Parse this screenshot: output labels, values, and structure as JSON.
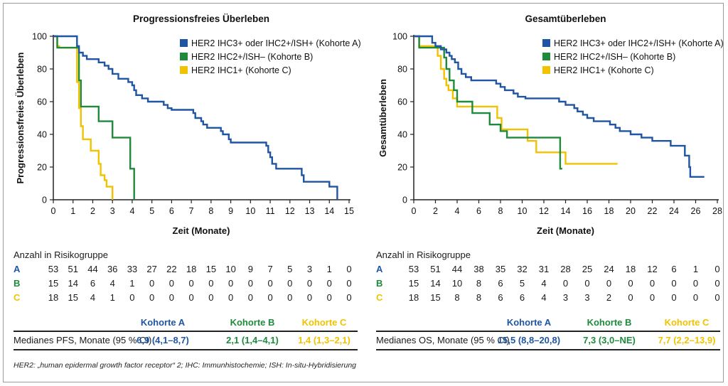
{
  "colors": {
    "A": "#1f55a3",
    "B": "#1e8a3c",
    "C": "#f2c200",
    "axis": "#222222"
  },
  "risk_header": "Anzahl in Risikogruppe",
  "cohort_letters": [
    "A",
    "B",
    "C"
  ],
  "median_headers": [
    "Kohorte A",
    "Kohorte B",
    "Kohorte C"
  ],
  "footnote": "HER2: „human epidermal growth factor receptor“ 2; IHC: Immunhistochemie; ISH: In-situ-Hybridisierung",
  "chart_data": [
    {
      "type": "line",
      "step": true,
      "title": "Progressionsfreies Überleben",
      "xlabel": "Zeit (Monate)",
      "ylabel": "Progressionsfreies Überleben",
      "xlim": [
        0,
        15
      ],
      "ylim": [
        0,
        100
      ],
      "xticks": [
        "0",
        "1",
        "2",
        "3",
        "4",
        "5",
        "6",
        "7",
        "8",
        "9",
        "10",
        "11",
        "12",
        "13",
        "14",
        "15"
      ],
      "yticks": [
        "0",
        "20",
        "40",
        "60",
        "80",
        "100"
      ],
      "legend_position": "top-right",
      "series": [
        {
          "name": "HER2 IHC3+ oder IHC2+/ISH+ (Kohorte A)",
          "color": "#1f55a3",
          "points": [
            [
              0,
              100
            ],
            [
              0.8,
              100
            ],
            [
              1.2,
              94
            ],
            [
              1.3,
              90
            ],
            [
              1.5,
              88
            ],
            [
              1.7,
              86
            ],
            [
              2.3,
              84
            ],
            [
              2.6,
              82
            ],
            [
              2.8,
              80
            ],
            [
              3.0,
              77
            ],
            [
              3.3,
              74
            ],
            [
              3.8,
              72
            ],
            [
              4.0,
              70
            ],
            [
              4.1,
              67
            ],
            [
              4.2,
              64
            ],
            [
              4.5,
              62
            ],
            [
              4.8,
              60
            ],
            [
              5.6,
              58
            ],
            [
              5.8,
              56
            ],
            [
              6.0,
              55
            ],
            [
              7.1,
              53
            ],
            [
              7.2,
              50
            ],
            [
              7.5,
              48
            ],
            [
              7.6,
              46
            ],
            [
              7.8,
              44
            ],
            [
              8.5,
              42
            ],
            [
              8.6,
              40
            ],
            [
              8.9,
              37
            ],
            [
              9.0,
              35
            ],
            [
              10.8,
              33
            ],
            [
              10.9,
              29
            ],
            [
              11.0,
              26
            ],
            [
              11.1,
              22
            ],
            [
              11.3,
              19
            ],
            [
              12.6,
              15
            ],
            [
              12.7,
              11
            ],
            [
              14.0,
              8
            ],
            [
              14.4,
              5
            ],
            [
              14.4,
              0
            ]
          ]
        },
        {
          "name": "HER2 IHC2+/ISH– (Kohorte B)",
          "color": "#1e8a3c",
          "points": [
            [
              0,
              100
            ],
            [
              0.2,
              93
            ],
            [
              1.2,
              93
            ],
            [
              1.3,
              73
            ],
            [
              1.4,
              57
            ],
            [
              2.2,
              57
            ],
            [
              2.3,
              48
            ],
            [
              2.9,
              48
            ],
            [
              3.0,
              38
            ],
            [
              3.8,
              38
            ],
            [
              3.9,
              19
            ],
            [
              4.1,
              19
            ],
            [
              4.1,
              0
            ]
          ]
        },
        {
          "name": "HER2 IHC1+ (Kohorte C)",
          "color": "#f2c200",
          "points": [
            [
              0,
              100
            ],
            [
              0.2,
              94
            ],
            [
              0.3,
              93
            ],
            [
              1.1,
              93
            ],
            [
              1.2,
              72
            ],
            [
              1.3,
              56
            ],
            [
              1.4,
              45
            ],
            [
              1.5,
              37
            ],
            [
              1.8,
              37
            ],
            [
              1.9,
              30
            ],
            [
              2.2,
              30
            ],
            [
              2.3,
              22
            ],
            [
              2.4,
              15
            ],
            [
              2.6,
              12
            ],
            [
              2.7,
              8
            ],
            [
              3.0,
              8
            ],
            [
              3.0,
              0
            ]
          ]
        }
      ],
      "risk_table": {
        "A": [
          "53",
          "51",
          "44",
          "36",
          "33",
          "27",
          "22",
          "18",
          "15",
          "10",
          "9",
          "7",
          "5",
          "3",
          "1",
          "0"
        ],
        "B": [
          "15",
          "14",
          "6",
          "4",
          "1",
          "0",
          "0",
          "0",
          "0",
          "0",
          "0",
          "0",
          "0",
          "0",
          "0",
          "0"
        ],
        "C": [
          "18",
          "15",
          "4",
          "1",
          "0",
          "0",
          "0",
          "0",
          "0",
          "0",
          "0",
          "0",
          "0",
          "0",
          "0",
          "0"
        ]
      },
      "median": {
        "label": "Medianes PFS, Monate (95 % CI)",
        "values": [
          "6,9 (4,1–8,7)",
          "2,1 (1,4–4,1)",
          "1,4 (1,3–2,1)"
        ]
      }
    },
    {
      "type": "line",
      "step": true,
      "title": "Gesamtüberleben",
      "xlabel": "Zeit (Monate)",
      "ylabel": "Gesamtüberleben",
      "xlim": [
        0,
        28
      ],
      "ylim": [
        0,
        100
      ],
      "xticks": [
        "0",
        "2",
        "4",
        "6",
        "8",
        "10",
        "12",
        "14",
        "16",
        "18",
        "20",
        "22",
        "24",
        "26",
        "28"
      ],
      "yticks": [
        "0",
        "20",
        "40",
        "60",
        "80",
        "100"
      ],
      "legend_position": "top-right",
      "series": [
        {
          "name": "HER2 IHC3+ oder IHC2+/ISH+ (Kohorte A)",
          "color": "#1f55a3",
          "points": [
            [
              0,
              100
            ],
            [
              1.5,
              100
            ],
            [
              1.7,
              96
            ],
            [
              2.0,
              94
            ],
            [
              2.5,
              92
            ],
            [
              3.0,
              90
            ],
            [
              3.3,
              88
            ],
            [
              3.5,
              86
            ],
            [
              3.8,
              84
            ],
            [
              4.1,
              80
            ],
            [
              4.4,
              77
            ],
            [
              4.8,
              75
            ],
            [
              5.3,
              73
            ],
            [
              7.6,
              71
            ],
            [
              8.0,
              69
            ],
            [
              8.4,
              67
            ],
            [
              9.2,
              65
            ],
            [
              9.6,
              63
            ],
            [
              10.3,
              62
            ],
            [
              13.4,
              60
            ],
            [
              14.0,
              58
            ],
            [
              14.8,
              56
            ],
            [
              15.1,
              54
            ],
            [
              15.6,
              52
            ],
            [
              16.0,
              50
            ],
            [
              16.6,
              48
            ],
            [
              18.1,
              46
            ],
            [
              18.6,
              44
            ],
            [
              19.0,
              42
            ],
            [
              20.0,
              40
            ],
            [
              21.0,
              38
            ],
            [
              22.0,
              36
            ],
            [
              23.7,
              33
            ],
            [
              25.0,
              27
            ],
            [
              25.4,
              20
            ],
            [
              25.5,
              14
            ],
            [
              26.8,
              14
            ]
          ]
        },
        {
          "name": "HER2 IHC2+/ISH– (Kohorte B)",
          "color": "#1e8a3c",
          "points": [
            [
              0,
              100
            ],
            [
              0.5,
              93
            ],
            [
              2.5,
              93
            ],
            [
              2.8,
              87
            ],
            [
              3.0,
              80
            ],
            [
              3.3,
              73
            ],
            [
              3.7,
              67
            ],
            [
              4.0,
              60
            ],
            [
              5.2,
              60
            ],
            [
              5.4,
              53
            ],
            [
              6.8,
              53
            ],
            [
              7.0,
              46
            ],
            [
              7.6,
              46
            ],
            [
              8.0,
              42
            ],
            [
              8.6,
              38
            ],
            [
              13.3,
              38
            ],
            [
              13.5,
              19
            ],
            [
              13.7,
              19
            ]
          ]
        },
        {
          "name": "HER2 IHC1+ (Kohorte C)",
          "color": "#f2c200",
          "points": [
            [
              0,
              100
            ],
            [
              0.5,
              94
            ],
            [
              2.0,
              94
            ],
            [
              2.2,
              88
            ],
            [
              2.5,
              80
            ],
            [
              2.8,
              74
            ],
            [
              3.0,
              70
            ],
            [
              3.2,
              67
            ],
            [
              3.6,
              62
            ],
            [
              4.0,
              57
            ],
            [
              7.5,
              57
            ],
            [
              7.7,
              50
            ],
            [
              8.1,
              43
            ],
            [
              10.0,
              43
            ],
            [
              10.5,
              36
            ],
            [
              11.3,
              29
            ],
            [
              13.7,
              29
            ],
            [
              14.0,
              22
            ],
            [
              18.8,
              22
            ]
          ]
        }
      ],
      "risk_table": {
        "A": [
          "53",
          "51",
          "44",
          "38",
          "35",
          "32",
          "31",
          "28",
          "25",
          "24",
          "18",
          "12",
          "6",
          "1",
          "0"
        ],
        "B": [
          "15",
          "14",
          "10",
          "8",
          "6",
          "5",
          "4",
          "0",
          "0",
          "0",
          "0",
          "0",
          "0",
          "0",
          "0"
        ],
        "C": [
          "18",
          "15",
          "8",
          "8",
          "6",
          "6",
          "4",
          "3",
          "3",
          "2",
          "0",
          "0",
          "0",
          "0",
          "0"
        ]
      },
      "median": {
        "label": "Medianes OS, Monate (95 % CI)",
        "values": [
          "15,5 (8,8–20,8)",
          "7,3 (3,0–NE)",
          "7,7 (2,2–13,9)"
        ]
      }
    }
  ]
}
